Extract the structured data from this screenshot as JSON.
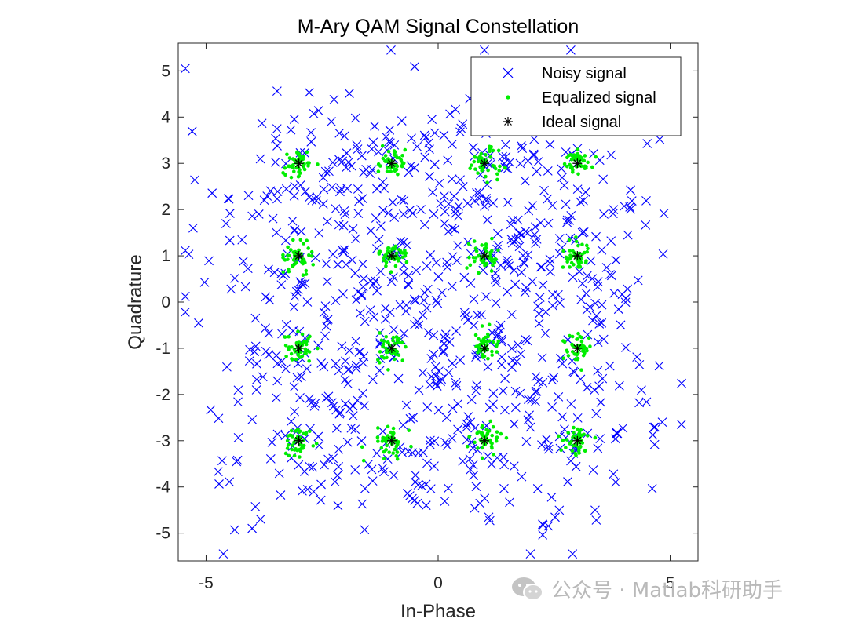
{
  "chart_data": {
    "type": "scatter",
    "title": "M-Ary QAM Signal Constellation",
    "xlabel": "In-Phase",
    "ylabel": "Quadrature",
    "xlim": [
      -5.6,
      5.6
    ],
    "ylim": [
      -5.6,
      5.6
    ],
    "xticks": [
      -5,
      0,
      5
    ],
    "yticks": [
      5,
      4,
      3,
      2,
      1,
      0,
      -1,
      -2,
      -3,
      -4,
      -5
    ],
    "legend_position": "top-right",
    "colors": {
      "noisy": "#0000ff",
      "equalized": "#00ee00",
      "ideal": "#000000"
    },
    "series": [
      {
        "name": "Noisy signal",
        "marker": "x",
        "color": "#0000ff",
        "spread": 0.78,
        "count_per_point": 55
      },
      {
        "name": "Equalized signal",
        "marker": "dot",
        "color": "#00ee00",
        "spread": 0.14,
        "count_per_point": 45
      },
      {
        "name": "Ideal signal",
        "marker": "asterisk",
        "color": "#000000",
        "points": [
          [
            -3,
            3
          ],
          [
            -1,
            3
          ],
          [
            1,
            3
          ],
          [
            3,
            3
          ],
          [
            -3,
            1
          ],
          [
            -1,
            1
          ],
          [
            1,
            1
          ],
          [
            3,
            1
          ],
          [
            -3,
            -1
          ],
          [
            -1,
            -1
          ],
          [
            1,
            -1
          ],
          [
            3,
            -1
          ],
          [
            -3,
            -3
          ],
          [
            -1,
            -3
          ],
          [
            1,
            -3
          ],
          [
            3,
            -3
          ]
        ]
      }
    ]
  },
  "watermark": {
    "icon": "wechat-icon",
    "text": "公众号 · Matlab科研助手"
  }
}
